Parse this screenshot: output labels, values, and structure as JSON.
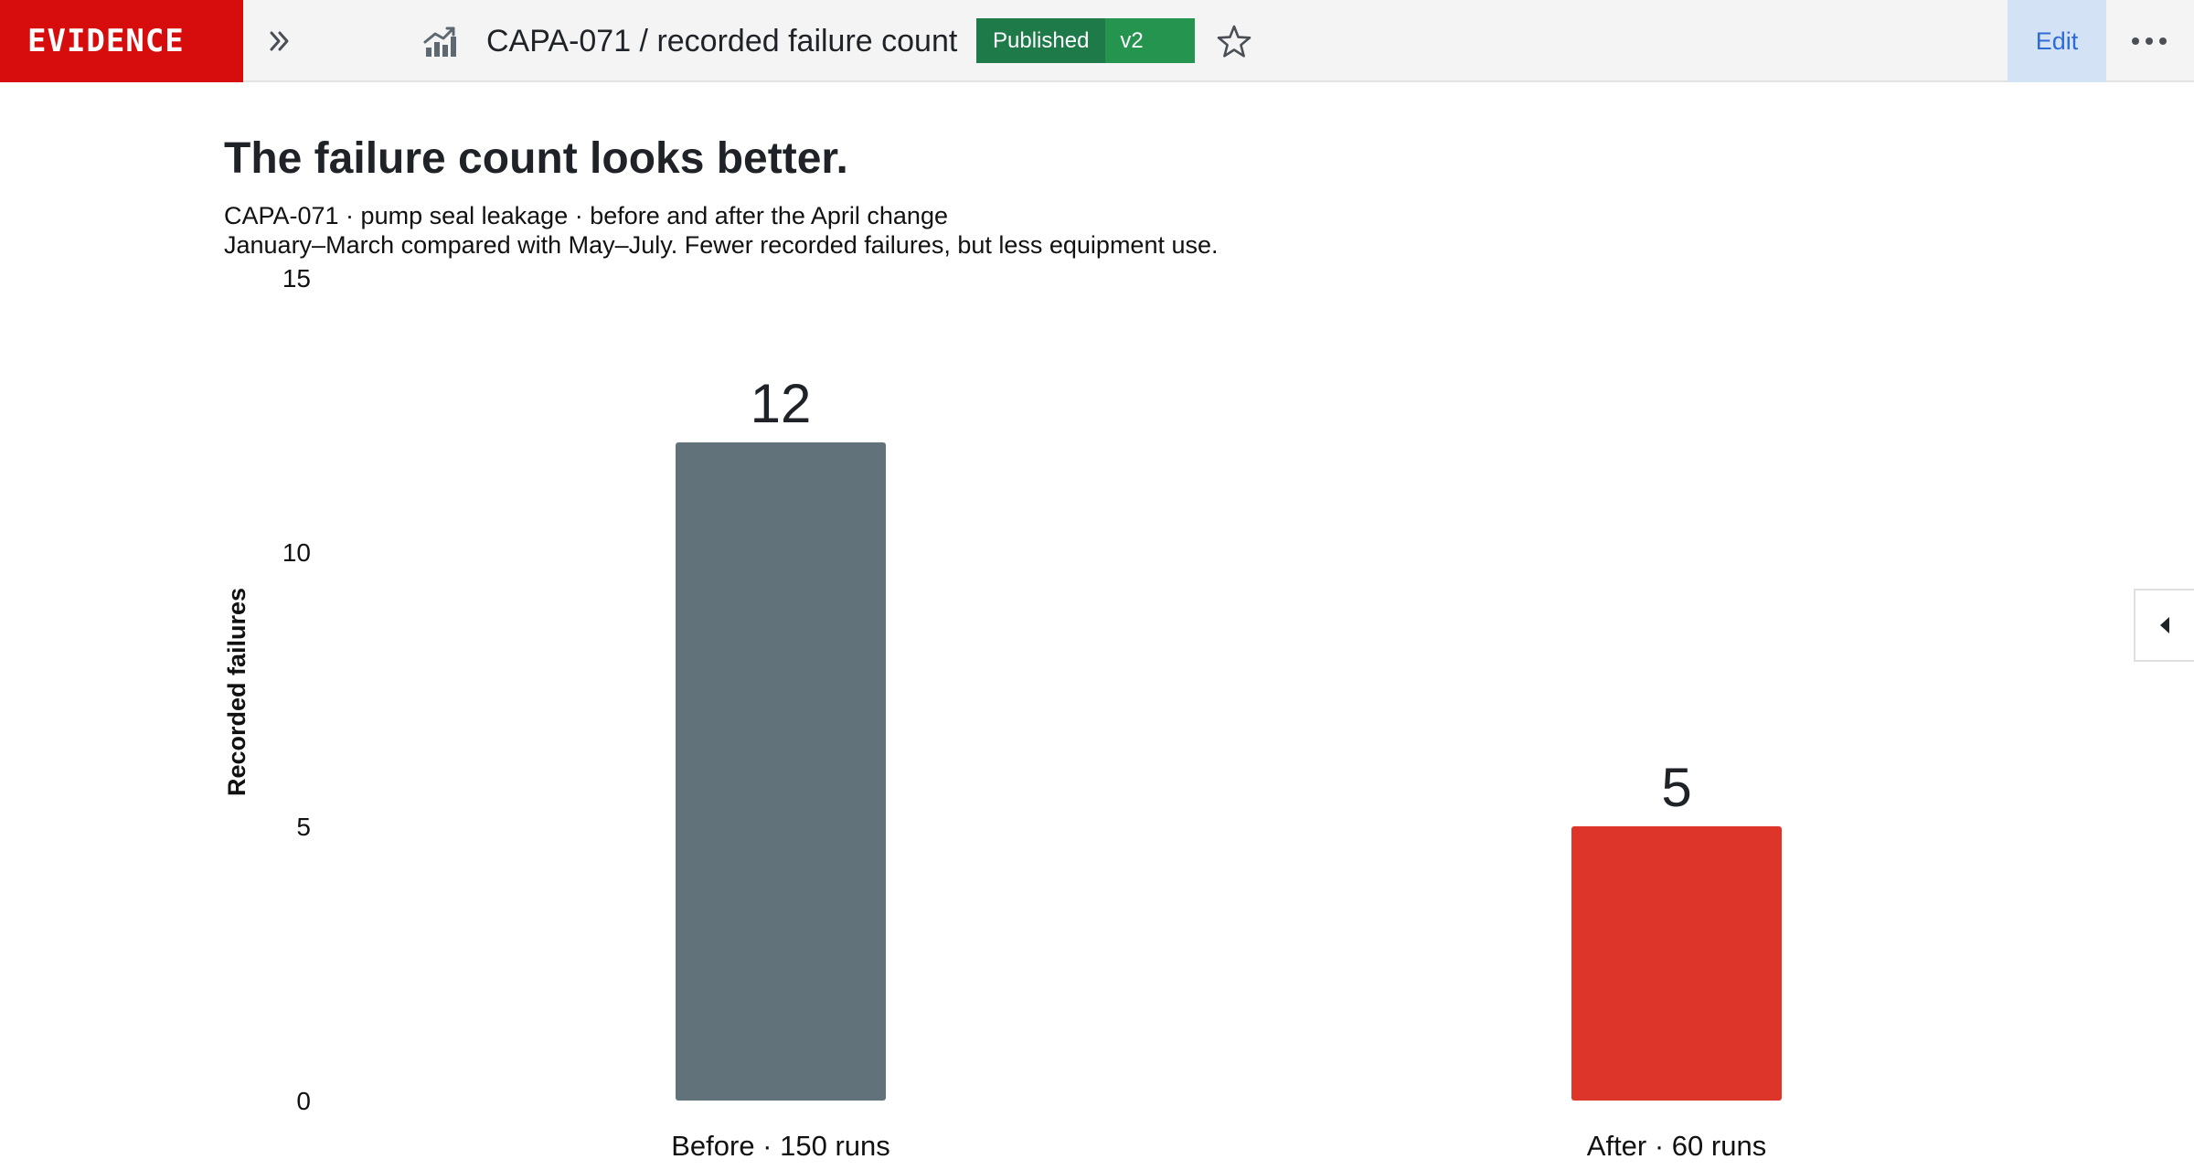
{
  "header": {
    "brand": "EVIDENCE",
    "title": "CAPA-071 / recorded failure count",
    "status_badge": "Published",
    "version_badge": "v2",
    "edit_label": "Edit",
    "icons": {
      "expand": "double-chevron-right-icon",
      "chart": "chart-icon",
      "favorite": "star-icon",
      "more": "more-horizontal-icon",
      "side_panel": "caret-left-icon"
    },
    "colors": {
      "brand": "#d70d0d",
      "published": "#1f7a4a",
      "version": "#25944f",
      "edit_bg": "#d4e2f6",
      "edit_text": "#2f6bd6"
    }
  },
  "report": {
    "headline": "The failure count looks better.",
    "subtitle": "CAPA-071 · pump seal leakage · before and after the April change",
    "note": "January–March compared with May–July. Fewer recorded failures, but less equipment use."
  },
  "chart_data": {
    "type": "bar",
    "categories": [
      "Before · 150 runs",
      "After · 60 runs"
    ],
    "values": [
      12,
      5
    ],
    "data_labels": [
      "12",
      "5"
    ],
    "colors": [
      "#62727b",
      "#de352b"
    ],
    "ylabel": "Recorded failures",
    "xlabel": "",
    "ylim": [
      0,
      15
    ],
    "yticks": [
      0,
      5,
      10,
      15
    ],
    "grid": false,
    "legend": "none"
  }
}
